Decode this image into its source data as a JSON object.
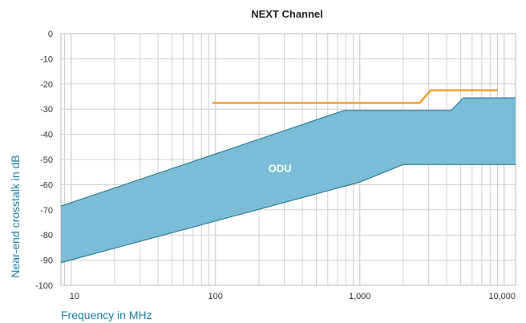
{
  "chart_data": {
    "type": "area",
    "title": "NEXT Channel",
    "xlabel": "Frequency in MHz",
    "ylabel": "Near-end crosstalk in dB",
    "x_scale": "log",
    "xlim": [
      8.5,
      12000
    ],
    "ylim": [
      -100,
      0
    ],
    "y_ticks": [
      0,
      -10,
      -20,
      -30,
      -40,
      -50,
      -60,
      -70,
      -80,
      -90,
      -100
    ],
    "x_tick_values": [
      10,
      100,
      1000,
      10000
    ],
    "x_tick_labels": [
      "10",
      "100",
      "1,000",
      "10,000"
    ],
    "grid": true,
    "band": {
      "label": "ODU",
      "color": "#7bbdd6",
      "edge_color": "#1a6a8a",
      "upper": {
        "x": [
          8.5,
          780,
          4300,
          5200,
          12000
        ],
        "y": [
          -68.5,
          -30.5,
          -30.5,
          -25.5,
          -25.5
        ]
      },
      "lower": {
        "x": [
          8.5,
          1000,
          2000,
          12000
        ],
        "y": [
          -91,
          -59,
          -52,
          -52
        ]
      }
    },
    "series": [
      {
        "color": "#f5a030",
        "x": [
          95,
          2600,
          3100,
          9000
        ],
        "y": [
          -27.5,
          -27.5,
          -22.5,
          -22.5
        ]
      }
    ],
    "colors": {
      "axis_label": "#1e7fa8",
      "grid": "#cfcfcf"
    }
  }
}
